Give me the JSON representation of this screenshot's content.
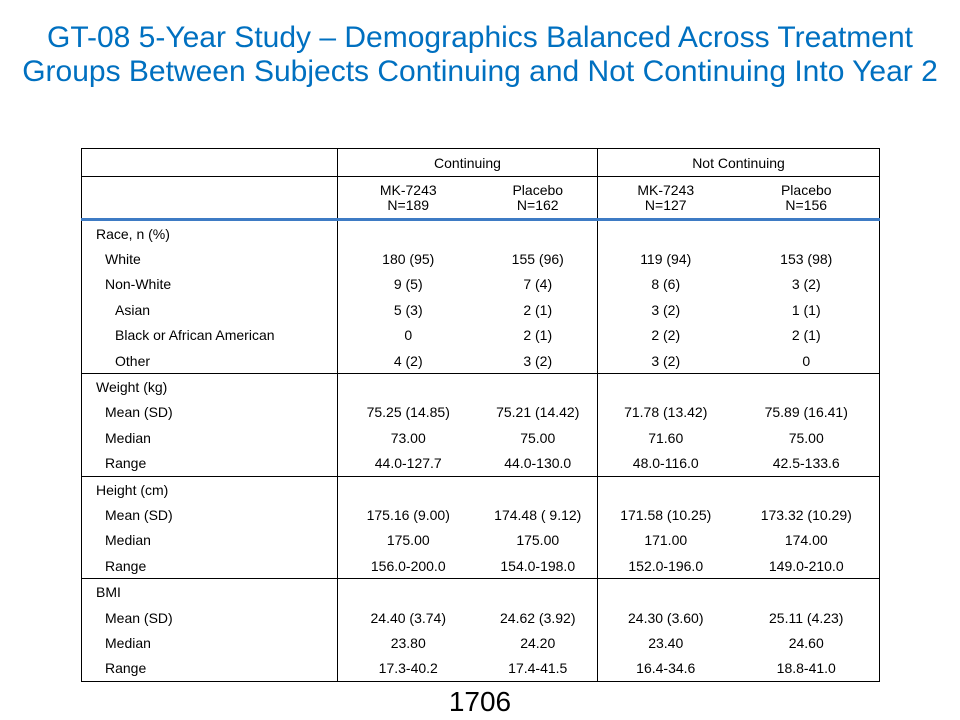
{
  "title": "GT-08 5-Year Study – Demographics Balanced Across Treatment Groups Between Subjects Continuing and Not Continuing Into Year 2",
  "table": {
    "group_headers": [
      "Continuing",
      "Not  Continuing"
    ],
    "columns": [
      {
        "name": "MK-7243",
        "n": "N=189"
      },
      {
        "name": "Placebo",
        "n": "N=162"
      },
      {
        "name": "MK-7243",
        "n": "N=127"
      },
      {
        "name": "Placebo",
        "n": "N=156"
      }
    ],
    "sections": [
      {
        "label": "Race,  n  (%)",
        "rows": [
          {
            "label": "White",
            "indent": 1,
            "values": [
              "180  (95)",
              "155  (96)",
              "119  (94)",
              "153  (98)"
            ]
          },
          {
            "label": "Non-White",
            "indent": 1,
            "values": [
              "9 (5)",
              "7 (4)",
              "8 (6)",
              "3 (2)"
            ]
          },
          {
            "label": "Asian",
            "indent": 2,
            "values": [
              "5 (3)",
              "2 (1)",
              "3 (2)",
              "1 (1)"
            ]
          },
          {
            "label": "Black or African American",
            "indent": 2,
            "values": [
              "0",
              "2 (1)",
              "2 (2)",
              "2 (1)"
            ]
          },
          {
            "label": "Other",
            "indent": 2,
            "values": [
              "4 (2)",
              "3 (2)",
              "3 (2)",
              "0"
            ]
          }
        ]
      },
      {
        "label": "Weight  (kg)",
        "rows": [
          {
            "label": "Mean  (SD)",
            "indent": 1,
            "values": [
              "75.25  (14.85)",
              "75.21  (14.42)",
              "71.78  (13.42)",
              "75.89  (16.41)"
            ]
          },
          {
            "label": "Median",
            "indent": 1,
            "values": [
              "73.00",
              "75.00",
              "71.60",
              "75.00"
            ]
          },
          {
            "label": "Range",
            "indent": 1,
            "values": [
              "44.0-127.7",
              "44.0-130.0",
              "48.0-116.0",
              "42.5-133.6"
            ]
          }
        ]
      },
      {
        "label": "Height  (cm)",
        "rows": [
          {
            "label": "Mean  (SD)",
            "indent": 1,
            "values": [
              "175.16  (9.00)",
              "174.48  ( 9.12)",
              "171.58  (10.25)",
              "173.32  (10.29)"
            ]
          },
          {
            "label": "Median",
            "indent": 1,
            "values": [
              "175.00",
              "175.00",
              "171.00",
              "174.00"
            ]
          },
          {
            "label": "Range",
            "indent": 1,
            "values": [
              "156.0-200.0",
              "154.0-198.0",
              "152.0-196.0",
              "149.0-210.0"
            ]
          }
        ]
      },
      {
        "label": "BMI",
        "rows": [
          {
            "label": "Mean  (SD)",
            "indent": 1,
            "values": [
              "24.40  (3.74)",
              "24.62  (3.92)",
              "24.30  (3.60)",
              "25.11  (4.23)"
            ]
          },
          {
            "label": "Median",
            "indent": 1,
            "values": [
              "23.80",
              "24.20",
              "23.40",
              "24.60"
            ]
          },
          {
            "label": "Range",
            "indent": 1,
            "values": [
              "17.3-40.2",
              "17.4-41.5",
              "16.4-34.6",
              "18.8-41.0"
            ]
          }
        ]
      }
    ]
  },
  "page_number": "1706",
  "colors": {
    "title": "#0070C0",
    "header_rule": "#3E7BC4"
  }
}
